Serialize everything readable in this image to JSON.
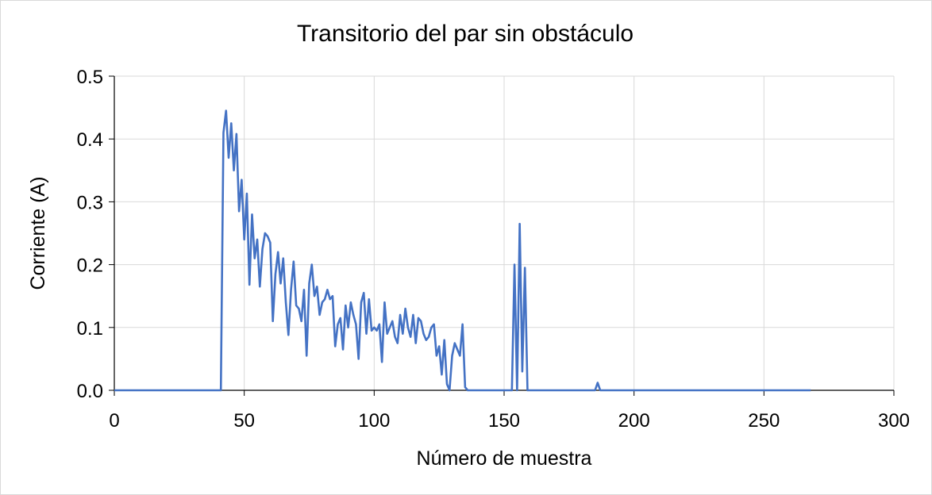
{
  "chart_data": {
    "type": "line",
    "title": "Transitorio del par sin obstáculo",
    "xlabel": "Número de muestra",
    "ylabel": "Corriente (A)",
    "xlim": [
      0,
      300
    ],
    "ylim": [
      0,
      0.5
    ],
    "xticks": [
      "0",
      "50",
      "100",
      "150",
      "200",
      "250",
      "300"
    ],
    "yticks": [
      "0.0",
      "0.1",
      "0.2",
      "0.3",
      "0.4",
      "0.5"
    ],
    "grid": true,
    "legend": "none",
    "series": [
      {
        "color": "#4472C4",
        "x": [
          0,
          41,
          42,
          43,
          44,
          45,
          46,
          47,
          48,
          49,
          50,
          51,
          52,
          53,
          54,
          55,
          56,
          57,
          58,
          59,
          60,
          61,
          62,
          63,
          64,
          65,
          66,
          67,
          68,
          69,
          70,
          71,
          72,
          73,
          74,
          75,
          76,
          77,
          78,
          79,
          80,
          81,
          82,
          83,
          84,
          85,
          86,
          87,
          88,
          89,
          90,
          91,
          92,
          93,
          94,
          95,
          96,
          97,
          98,
          99,
          100,
          101,
          102,
          103,
          104,
          105,
          106,
          107,
          108,
          109,
          110,
          111,
          112,
          113,
          114,
          115,
          116,
          117,
          118,
          119,
          120,
          121,
          122,
          123,
          124,
          125,
          126,
          127,
          128,
          129,
          130,
          131,
          132,
          133,
          134,
          135,
          136,
          137,
          153,
          154,
          155,
          156,
          157,
          158,
          159,
          160,
          185,
          186,
          187,
          268
        ],
        "y": [
          0,
          0,
          0.41,
          0.445,
          0.37,
          0.425,
          0.35,
          0.408,
          0.285,
          0.335,
          0.24,
          0.313,
          0.168,
          0.28,
          0.21,
          0.24,
          0.165,
          0.225,
          0.25,
          0.245,
          0.235,
          0.11,
          0.185,
          0.22,
          0.17,
          0.21,
          0.14,
          0.088,
          0.16,
          0.205,
          0.135,
          0.13,
          0.11,
          0.16,
          0.055,
          0.17,
          0.2,
          0.15,
          0.165,
          0.12,
          0.14,
          0.145,
          0.16,
          0.145,
          0.15,
          0.07,
          0.105,
          0.115,
          0.065,
          0.135,
          0.1,
          0.14,
          0.12,
          0.105,
          0.05,
          0.14,
          0.155,
          0.09,
          0.145,
          0.095,
          0.1,
          0.095,
          0.105,
          0.045,
          0.14,
          0.09,
          0.1,
          0.11,
          0.085,
          0.075,
          0.12,
          0.09,
          0.13,
          0.1,
          0.085,
          0.12,
          0.075,
          0.115,
          0.11,
          0.09,
          0.08,
          0.085,
          0.1,
          0.105,
          0.055,
          0.07,
          0.025,
          0.08,
          0.01,
          0,
          0.055,
          0.075,
          0.065,
          0.055,
          0.105,
          0.005,
          0,
          0,
          0,
          0.2,
          0,
          0.265,
          0.03,
          0.195,
          0,
          0,
          0,
          0.012,
          0,
          0
        ]
      }
    ]
  }
}
